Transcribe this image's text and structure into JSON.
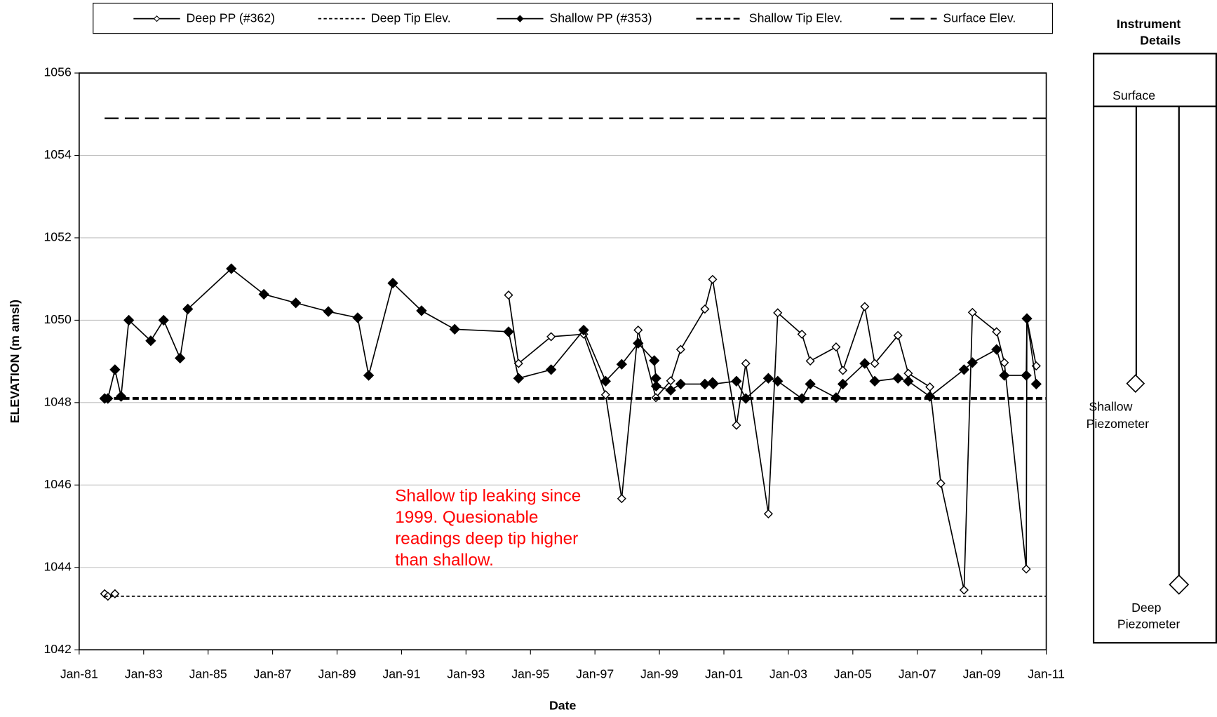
{
  "chart_data": {
    "type": "line",
    "x_label": "Date",
    "y_label": "ELEVATION (m amsl)",
    "xlim": [
      1981,
      2011
    ],
    "xticks": [
      {
        "value": 1981,
        "label": "Jan-81"
      },
      {
        "value": 1983,
        "label": "Jan-83"
      },
      {
        "value": 1985,
        "label": "Jan-85"
      },
      {
        "value": 1987,
        "label": "Jan-87"
      },
      {
        "value": 1989,
        "label": "Jan-89"
      },
      {
        "value": 1991,
        "label": "Jan-91"
      },
      {
        "value": 1993,
        "label": "Jan-93"
      },
      {
        "value": 1995,
        "label": "Jan-95"
      },
      {
        "value": 1997,
        "label": "Jan-97"
      },
      {
        "value": 1999,
        "label": "Jan-99"
      },
      {
        "value": 2001,
        "label": "Jan-01"
      },
      {
        "value": 2003,
        "label": "Jan-03"
      },
      {
        "value": 2005,
        "label": "Jan-05"
      },
      {
        "value": 2007,
        "label": "Jan-07"
      },
      {
        "value": 2009,
        "label": "Jan-09"
      },
      {
        "value": 2011,
        "label": "Jan-11"
      }
    ],
    "ylim": [
      1042,
      1056
    ],
    "yticks": [
      1042,
      1044,
      1046,
      1048,
      1050,
      1052,
      1054,
      1056
    ],
    "grid": true,
    "legend": "top",
    "annotation": [
      "Shallow tip leaking since",
      "1999. Quesionable",
      "readings deep tip higher",
      "than shallow."
    ],
    "annotation_color": "#ff0000",
    "series": [
      {
        "name": "Deep PP (#362)",
        "color": "#000000",
        "line_style": "solid",
        "marker": "open-diamond",
        "x": [
          1981.79,
          1981.89,
          1982.11,
          null,
          1994.32,
          1994.63,
          1995.64,
          1996.65,
          1997.33,
          1997.83,
          1998.34,
          1998.89,
          1999.35,
          1999.66,
          2000.41,
          2000.65,
          2001.39,
          2001.68,
          2002.38,
          2002.67,
          2003.42,
          2003.68,
          2004.48,
          2004.69,
          2005.37,
          2005.68,
          2006.4,
          2006.72,
          2007.39,
          2007.73,
          2008.45,
          2008.71,
          2009.46,
          2009.7,
          2010.38,
          2010.4,
          2010.69
        ],
        "values": [
          1043.36,
          1043.3,
          1043.36,
          null,
          1050.61,
          1048.95,
          1049.6,
          1049.66,
          1048.19,
          1045.67,
          1049.76,
          1048.12,
          1048.53,
          1049.29,
          1050.27,
          1050.99,
          1047.45,
          1048.95,
          1045.3,
          1050.18,
          1049.66,
          1049.01,
          1049.35,
          1048.78,
          1050.33,
          1048.95,
          1049.63,
          1048.71,
          1048.38,
          1046.04,
          1043.45,
          1050.19,
          1049.72,
          1048.97,
          1043.96,
          1050.04,
          1048.89
        ]
      },
      {
        "name": "Deep Tip Elev.",
        "color": "#000000",
        "line_style": "dotted",
        "marker": "none",
        "x": [
          1981.79,
          2011
        ],
        "values": [
          1043.3,
          1043.3
        ]
      },
      {
        "name": "Shallow PP (#353)",
        "color": "#000000",
        "line_style": "solid",
        "marker": "filled-diamond",
        "x": [
          1981.79,
          1981.89,
          1982.11,
          1982.3,
          1982.54,
          1983.22,
          1983.62,
          1984.13,
          1984.37,
          1985.72,
          1986.73,
          1987.72,
          1988.73,
          1989.64,
          1989.98,
          1990.73,
          1991.62,
          1992.65,
          1994.32,
          1994.63,
          1995.64,
          1996.65,
          1997.33,
          1997.83,
          1998.34,
          1998.84,
          1998.89,
          1998.9,
          1999.35,
          1999.66,
          2000.41,
          2000.65,
          2000.67,
          2001.39,
          2001.68,
          2002.38,
          2002.67,
          2003.42,
          2003.68,
          2004.48,
          2004.69,
          2005.37,
          2005.68,
          2006.4,
          2006.72,
          2007.39,
          2008.45,
          2008.71,
          2009.46,
          2009.7,
          2010.38,
          2010.4,
          2010.69
        ],
        "values": [
          1048.1,
          1048.1,
          1048.8,
          1048.15,
          1050.0,
          1049.5,
          1050.0,
          1049.08,
          1050.27,
          1051.25,
          1050.63,
          1050.42,
          1050.21,
          1050.06,
          1048.66,
          1050.9,
          1050.23,
          1049.78,
          1049.72,
          1048.59,
          1048.8,
          1049.76,
          1048.52,
          1048.93,
          1049.44,
          1049.02,
          1048.59,
          1048.4,
          1048.3,
          1048.45,
          1048.45,
          1048.49,
          1048.45,
          1048.52,
          1048.1,
          1048.59,
          1048.52,
          1048.1,
          1048.45,
          1048.12,
          1048.45,
          1048.95,
          1048.52,
          1048.59,
          1048.52,
          1048.15,
          1048.8,
          1048.97,
          1049.29,
          1048.66,
          1048.66,
          1050.04,
          1048.45
        ]
      },
      {
        "name": "Shallow Tip Elev.",
        "color": "#000000",
        "line_style": "thick-dashed",
        "marker": "none",
        "x": [
          1981.79,
          2011
        ],
        "values": [
          1048.1,
          1048.1
        ]
      },
      {
        "name": "Surface Elev.",
        "color": "#000000",
        "line_style": "long-dashed",
        "marker": "none",
        "x": [
          1981.79,
          2011
        ],
        "values": [
          1054.9,
          1054.9
        ]
      }
    ]
  },
  "instrument_panel": {
    "title": [
      "Instrument",
      "Details"
    ],
    "surface": "Surface",
    "shallow": [
      "Shallow",
      "Piezometer"
    ],
    "deep": [
      "Deep",
      "Piezometer"
    ]
  }
}
